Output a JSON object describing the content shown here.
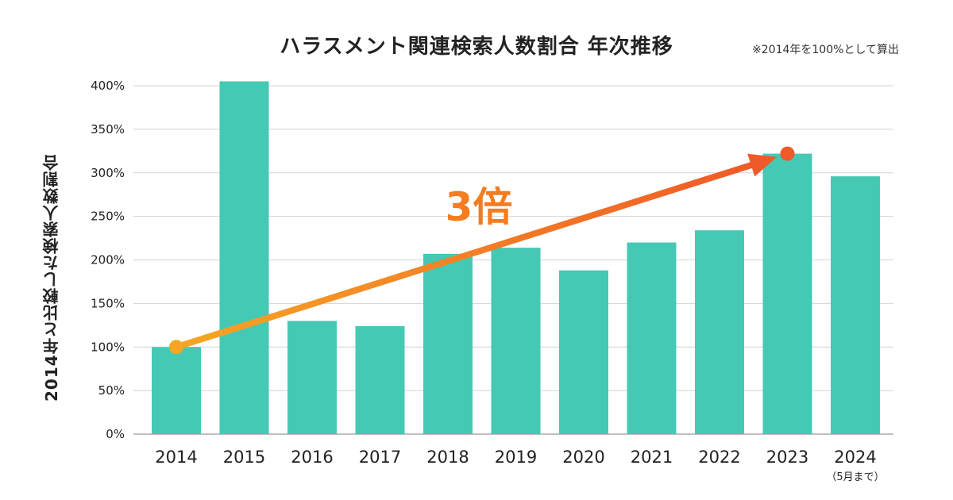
{
  "chart_data": {
    "type": "bar",
    "title": "ハラスメント関連検索人数割合 年次推移",
    "note": "※2014年を100%として算出",
    "ylabel": "2014年と比較した検索人数割合",
    "categories": [
      "2014",
      "2015",
      "2016",
      "2017",
      "2018",
      "2019",
      "2020",
      "2021",
      "2022",
      "2023",
      "2024"
    ],
    "category_sublabels": [
      "",
      "",
      "",
      "",
      "",
      "",
      "",
      "",
      "",
      "",
      "（5月まで）"
    ],
    "values": [
      100,
      405,
      130,
      124,
      207,
      214,
      188,
      220,
      234,
      322,
      296
    ],
    "ylim": [
      0,
      400
    ],
    "yticks": [
      0,
      50,
      100,
      150,
      200,
      250,
      300,
      350,
      400
    ],
    "ytick_labels": [
      "0%",
      "50%",
      "100%",
      "150%",
      "200%",
      "250%",
      "300%",
      "350%",
      "400%"
    ],
    "grid": true,
    "bar_color": "#45c9b4",
    "annotation": {
      "text": "3倍",
      "from_category": "2014",
      "from_value": 100,
      "to_category": "2023",
      "to_value": 322,
      "arrow_color_start": "#f5a623",
      "arrow_color_end": "#f05a28"
    }
  }
}
